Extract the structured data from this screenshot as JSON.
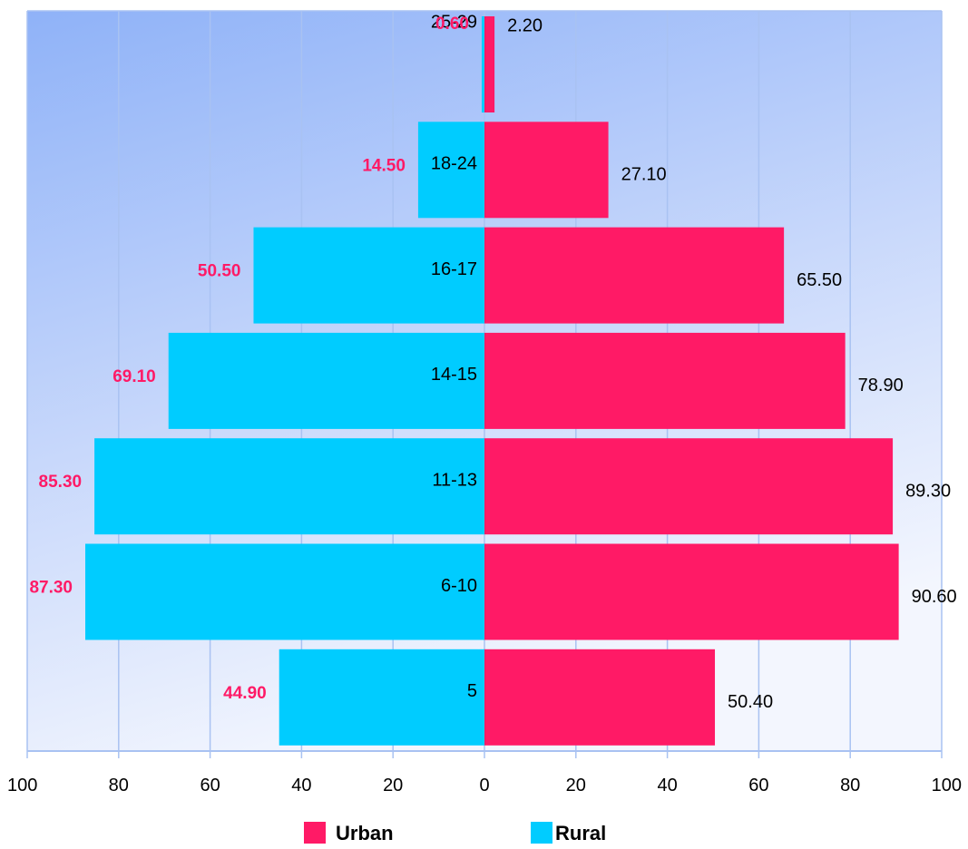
{
  "chart_data": {
    "type": "bar",
    "orientation": "horizontal",
    "layout": "population-pyramid",
    "categories": [
      "25-29",
      "18-24",
      "16-17",
      "14-15",
      "11-13",
      "6-10",
      "5"
    ],
    "series": [
      {
        "name": "Rural",
        "side": "left",
        "color": "#00ccff",
        "values": [
          0.6,
          14.5,
          50.5,
          69.1,
          85.3,
          87.3,
          44.9
        ],
        "labels": [
          "0.60",
          "14.50",
          "50.50",
          "69.10",
          "85.30",
          "87.30",
          "44.90"
        ]
      },
      {
        "name": "Urban",
        "side": "right",
        "color": "#ff1a66",
        "values": [
          2.2,
          27.1,
          65.5,
          78.9,
          89.3,
          90.6,
          50.4
        ],
        "labels": [
          "2.20",
          "27.10",
          "65.50",
          "78.90",
          "89.30",
          "90.60",
          "50.40"
        ]
      }
    ],
    "x_ticks": [
      "100",
      "80",
      "60",
      "40",
      "20",
      "0",
      "20",
      "40",
      "60",
      "80",
      "100"
    ],
    "xlim": [
      -100,
      100
    ],
    "grid": true,
    "legend": {
      "position": "bottom",
      "items": [
        "Urban",
        "Rural"
      ]
    },
    "colors": {
      "rural_value_text": "#ff1a66",
      "background_top_left": "#8fb2f8",
      "background_bottom": "#f3f6fe",
      "grid": "#a9c2f2"
    }
  }
}
